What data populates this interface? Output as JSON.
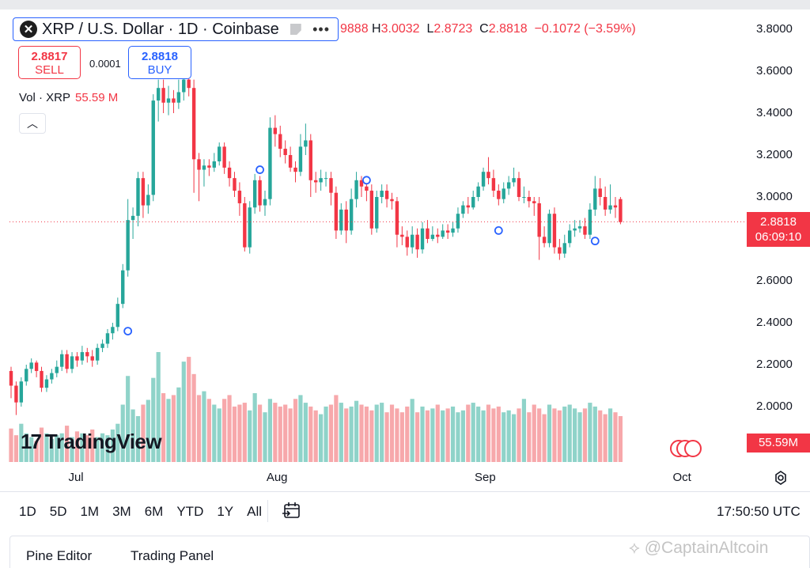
{
  "symbol": {
    "title": "XRP / U.S. Dollar · 1D · Coinbase",
    "logo_glyph": "✕",
    "more_icon": "•••"
  },
  "ohlc": {
    "open_fragment": "9888",
    "high_label": "H",
    "high": "3.0032",
    "low_label": "L",
    "low": "2.8723",
    "close_label": "C",
    "close": "2.8818",
    "change": "−0.1072 (−3.59%)"
  },
  "trade": {
    "sell_price": "2.8817",
    "sell_label": "SELL",
    "spread": "0.0001",
    "buy_price": "2.8818",
    "buy_label": "BUY"
  },
  "volume_legend": {
    "label": "Vol · XRP",
    "value": "55.59 M"
  },
  "collapse_glyph": "︿",
  "price_tag": {
    "price": "2.8818",
    "countdown": "06:09:10"
  },
  "volume_tag": "55.59M",
  "timeframes": [
    "1D",
    "5D",
    "1M",
    "3M",
    "6M",
    "YTD",
    "1Y",
    "All"
  ],
  "clock": "17:50:50 UTC",
  "bottom_tabs": {
    "pine": "Pine Editor",
    "trading": "Trading Panel"
  },
  "branding": {
    "mark": "17",
    "name": "TradingView"
  },
  "watermark": "⟡ @CaptainAltcoin",
  "colors": {
    "up": "#26a69a",
    "down": "#f23645",
    "up_vol": "#8fd3c9",
    "down_vol": "#f7a8ab",
    "accent": "#2962ff"
  },
  "chart_data": {
    "type": "candlestick",
    "ylim": [
      1.86,
      3.88
    ],
    "y_ticks": [
      "3.8000",
      "3.6000",
      "3.4000",
      "3.2000",
      "3.0000",
      "2.6000",
      "2.4000",
      "2.2000",
      "2.0000"
    ],
    "x_ticks": [
      "Jul",
      "Aug",
      "Sep",
      "Oct"
    ],
    "candles": [
      [
        2.17,
        2.1,
        2.19,
        2.04
      ],
      [
        2.1,
        2.02,
        2.12,
        1.96
      ],
      [
        2.02,
        2.12,
        2.14,
        2.0
      ],
      [
        2.12,
        2.18,
        2.2,
        2.1
      ],
      [
        2.18,
        2.21,
        2.23,
        2.16
      ],
      [
        2.21,
        2.17,
        2.22,
        2.14
      ],
      [
        2.17,
        2.09,
        2.19,
        2.07
      ],
      [
        2.09,
        2.13,
        2.15,
        2.07
      ],
      [
        2.13,
        2.16,
        2.18,
        2.11
      ],
      [
        2.16,
        2.19,
        2.22,
        2.14
      ],
      [
        2.19,
        2.25,
        2.27,
        2.17
      ],
      [
        2.25,
        2.18,
        2.27,
        2.16
      ],
      [
        2.18,
        2.24,
        2.26,
        2.16
      ],
      [
        2.24,
        2.22,
        2.26,
        2.19
      ],
      [
        2.22,
        2.26,
        2.29,
        2.2
      ],
      [
        2.26,
        2.24,
        2.28,
        2.21
      ],
      [
        2.24,
        2.22,
        2.27,
        2.19
      ],
      [
        2.22,
        2.28,
        2.3,
        2.2
      ],
      [
        2.28,
        2.3,
        2.32,
        2.26
      ],
      [
        2.3,
        2.35,
        2.37,
        2.28
      ],
      [
        2.35,
        2.38,
        2.4,
        2.32
      ],
      [
        2.38,
        2.49,
        2.52,
        2.36
      ],
      [
        2.49,
        2.65,
        2.68,
        2.47
      ],
      [
        2.65,
        2.89,
        2.99,
        2.62
      ],
      [
        2.89,
        2.91,
        2.95,
        2.8
      ],
      [
        2.91,
        3.09,
        3.12,
        2.86
      ],
      [
        3.09,
        2.96,
        3.12,
        2.9
      ],
      [
        2.96,
        3.01,
        3.06,
        2.92
      ],
      [
        3.01,
        3.46,
        3.49,
        2.98
      ],
      [
        3.46,
        3.52,
        3.56,
        3.36
      ],
      [
        3.52,
        3.45,
        3.56,
        3.4
      ],
      [
        3.45,
        3.47,
        3.53,
        3.39
      ],
      [
        3.47,
        3.45,
        3.51,
        3.4
      ],
      [
        3.45,
        3.5,
        3.56,
        3.42
      ],
      [
        3.5,
        3.56,
        3.66,
        3.46
      ],
      [
        3.56,
        3.52,
        3.59,
        3.48
      ],
      [
        3.52,
        3.18,
        3.56,
        3.02
      ],
      [
        3.18,
        3.13,
        3.21,
        2.98
      ],
      [
        3.13,
        3.15,
        3.18,
        3.05
      ],
      [
        3.15,
        3.14,
        3.18,
        3.1
      ],
      [
        3.14,
        3.17,
        3.21,
        3.12
      ],
      [
        3.17,
        3.24,
        3.26,
        3.15
      ],
      [
        3.24,
        3.14,
        3.26,
        3.11
      ],
      [
        3.14,
        3.09,
        3.17,
        3.05
      ],
      [
        3.09,
        3.03,
        3.12,
        3.0
      ],
      [
        3.03,
        2.97,
        3.07,
        2.91
      ],
      [
        2.97,
        2.76,
        3.0,
        2.74
      ],
      [
        2.76,
        2.95,
        2.98,
        2.73
      ],
      [
        2.95,
        3.08,
        3.11,
        2.92
      ],
      [
        3.08,
        2.96,
        3.1,
        2.93
      ],
      [
        2.96,
        2.99,
        3.03,
        2.91
      ],
      [
        2.99,
        3.33,
        3.38,
        2.96
      ],
      [
        3.33,
        3.3,
        3.39,
        3.24
      ],
      [
        3.3,
        3.23,
        3.34,
        3.19
      ],
      [
        3.23,
        3.2,
        3.27,
        3.16
      ],
      [
        3.2,
        3.14,
        3.24,
        3.12
      ],
      [
        3.14,
        3.12,
        3.17,
        3.07
      ],
      [
        3.12,
        3.24,
        3.3,
        3.1
      ],
      [
        3.24,
        3.27,
        3.35,
        3.2
      ],
      [
        3.27,
        3.08,
        3.3,
        3.0
      ],
      [
        3.08,
        3.07,
        3.12,
        3.02
      ],
      [
        3.07,
        3.09,
        3.13,
        3.03
      ],
      [
        3.09,
        3.09,
        3.12,
        3.05
      ],
      [
        3.09,
        3.02,
        3.12,
        2.96
      ],
      [
        3.02,
        2.84,
        3.05,
        2.8
      ],
      [
        2.84,
        2.94,
        2.97,
        2.82
      ],
      [
        2.94,
        2.84,
        2.98,
        2.78
      ],
      [
        2.84,
        2.99,
        3.04,
        2.82
      ],
      [
        2.99,
        3.08,
        3.12,
        2.95
      ],
      [
        3.08,
        3.05,
        3.1,
        3.0
      ],
      [
        3.05,
        3.03,
        3.08,
        2.98
      ],
      [
        3.03,
        2.85,
        3.06,
        2.82
      ],
      [
        2.85,
        3.0,
        3.03,
        2.83
      ],
      [
        3.0,
        3.03,
        3.06,
        2.97
      ],
      [
        3.03,
        2.99,
        3.06,
        2.95
      ],
      [
        2.99,
        2.98,
        3.02,
        2.94
      ],
      [
        2.98,
        2.82,
        3.0,
        2.76
      ],
      [
        2.82,
        2.81,
        2.86,
        2.77
      ],
      [
        2.81,
        2.76,
        2.84,
        2.72
      ],
      [
        2.76,
        2.82,
        2.86,
        2.73
      ],
      [
        2.82,
        2.75,
        2.85,
        2.71
      ],
      [
        2.75,
        2.85,
        2.88,
        2.73
      ],
      [
        2.85,
        2.8,
        2.89,
        2.78
      ],
      [
        2.8,
        2.82,
        2.86,
        2.79
      ],
      [
        2.82,
        2.81,
        2.85,
        2.78
      ],
      [
        2.81,
        2.84,
        2.87,
        2.8
      ],
      [
        2.84,
        2.83,
        2.87,
        2.8
      ],
      [
        2.83,
        2.85,
        2.88,
        2.81
      ],
      [
        2.85,
        2.92,
        2.95,
        2.83
      ],
      [
        2.92,
        2.96,
        2.98,
        2.9
      ],
      [
        2.96,
        2.95,
        3.0,
        2.92
      ],
      [
        2.95,
        3.0,
        3.03,
        2.94
      ],
      [
        3.0,
        3.05,
        3.07,
        2.98
      ],
      [
        3.05,
        3.12,
        3.14,
        3.03
      ],
      [
        3.12,
        3.09,
        3.19,
        3.06
      ],
      [
        3.09,
        3.03,
        3.13,
        3.0
      ],
      [
        3.03,
        2.99,
        3.06,
        2.96
      ],
      [
        2.99,
        3.04,
        3.07,
        2.97
      ],
      [
        3.04,
        3.07,
        3.1,
        3.01
      ],
      [
        3.07,
        3.09,
        3.14,
        3.05
      ],
      [
        3.09,
        3.0,
        3.12,
        2.98
      ],
      [
        3.0,
        3.0,
        3.05,
        2.97
      ],
      [
        3.0,
        2.98,
        3.03,
        2.95
      ],
      [
        2.98,
        2.97,
        3.0,
        2.91
      ],
      [
        2.97,
        2.81,
        3.0,
        2.7
      ],
      [
        2.81,
        2.78,
        2.86,
        2.76
      ],
      [
        2.78,
        2.92,
        2.94,
        2.76
      ],
      [
        2.92,
        2.76,
        2.95,
        2.73
      ],
      [
        2.76,
        2.73,
        2.8,
        2.7
      ],
      [
        2.73,
        2.78,
        2.82,
        2.71
      ],
      [
        2.78,
        2.84,
        2.87,
        2.76
      ],
      [
        2.84,
        2.85,
        2.89,
        2.81
      ],
      [
        2.85,
        2.86,
        2.89,
        2.83
      ],
      [
        2.86,
        2.82,
        2.9,
        2.8
      ],
      [
        2.82,
        2.94,
        2.97,
        2.8
      ],
      [
        2.94,
        3.04,
        3.1,
        2.91
      ],
      [
        3.04,
        3.0,
        3.09,
        2.96
      ],
      [
        3.0,
        2.94,
        3.05,
        2.91
      ],
      [
        2.94,
        2.96,
        3.06,
        2.92
      ],
      [
        2.96,
        2.95,
        3.0,
        2.9
      ],
      [
        2.99,
        2.88,
        3.0,
        2.87
      ]
    ],
    "volumes": [
      35,
      28,
      40,
      30,
      26,
      22,
      36,
      30,
      24,
      28,
      30,
      38,
      26,
      32,
      30,
      28,
      34,
      26,
      30,
      28,
      34,
      40,
      60,
      90,
      55,
      48,
      60,
      65,
      88,
      115,
      72,
      66,
      70,
      78,
      105,
      110,
      92,
      70,
      74,
      66,
      60,
      56,
      66,
      70,
      58,
      60,
      62,
      54,
      72,
      60,
      52,
      66,
      62,
      58,
      60,
      56,
      66,
      70,
      62,
      58,
      54,
      50,
      58,
      60,
      70,
      62,
      56,
      58,
      64,
      60,
      58,
      54,
      60,
      62,
      52,
      60,
      56,
      52,
      58,
      66,
      52,
      58,
      54,
      56,
      60,
      54,
      56,
      58,
      52,
      54,
      60,
      62,
      58,
      54,
      60,
      56,
      58,
      52,
      54,
      50,
      56,
      66,
      52,
      60,
      56,
      50,
      60,
      56,
      54,
      58,
      60,
      56,
      52,
      56,
      62,
      58,
      54,
      50,
      56,
      52,
      48
    ],
    "volume_max": 120,
    "last_price": 2.8818,
    "markers": [
      {
        "index": 23,
        "price": 2.36
      },
      {
        "index": 49,
        "price": 3.13
      },
      {
        "index": 70,
        "price": 3.08
      },
      {
        "index": 96,
        "price": 2.84
      },
      {
        "index": 115,
        "price": 2.79
      }
    ],
    "x_tick_index": {
      "Jul": 13,
      "Aug": 52,
      "Sep": 93,
      "Oct": 132
    }
  }
}
